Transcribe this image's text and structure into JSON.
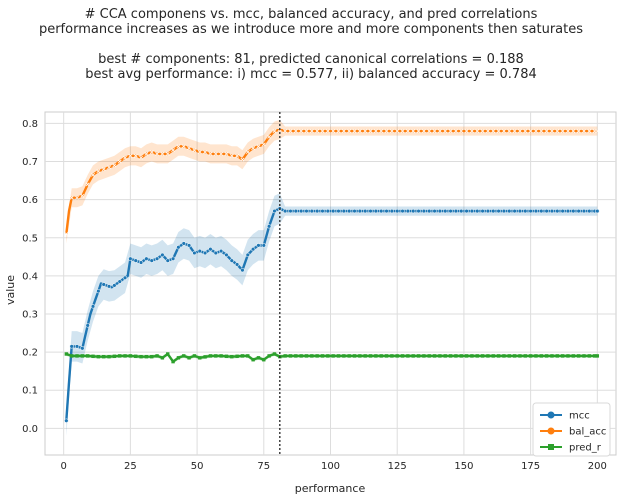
{
  "chart_data": {
    "type": "line",
    "title_lines": [
      "# CCA componens vs. mcc, balanced accuracy, and pred correlations",
      "performance increases as we introduce more and more components then saturates",
      "",
      "best # components: 81,  predicted canonical correlations = 0.188",
      "best avg performance:  i) mcc = 0.577,  ii) balanced accuracy = 0.784"
    ],
    "xlabel": "performance",
    "ylabel": "value",
    "xlim": [
      -7,
      207
    ],
    "ylim": [
      -0.07,
      0.83
    ],
    "xticks": [
      0,
      25,
      50,
      75,
      100,
      125,
      150,
      175,
      200
    ],
    "yticks": [
      0.0,
      0.1,
      0.2,
      0.3,
      0.4,
      0.5,
      0.6,
      0.7,
      0.8
    ],
    "grid": true,
    "legend_position": "lower-right",
    "vline_x": 81,
    "series": [
      {
        "name": "mcc",
        "color": "#1f77b4",
        "marker": "circle",
        "band_width": 0.04,
        "points": [
          [
            1,
            0.02
          ],
          [
            2,
            0.12
          ],
          [
            3,
            0.215
          ],
          [
            5,
            0.215
          ],
          [
            7,
            0.21
          ],
          [
            8,
            0.24
          ],
          [
            9,
            0.27
          ],
          [
            10,
            0.3
          ],
          [
            11,
            0.32
          ],
          [
            12,
            0.34
          ],
          [
            13,
            0.36
          ],
          [
            14,
            0.38
          ],
          [
            16,
            0.375
          ],
          [
            18,
            0.37
          ],
          [
            20,
            0.38
          ],
          [
            22,
            0.39
          ],
          [
            24,
            0.4
          ],
          [
            25,
            0.445
          ],
          [
            27,
            0.44
          ],
          [
            29,
            0.435
          ],
          [
            31,
            0.445
          ],
          [
            33,
            0.44
          ],
          [
            35,
            0.445
          ],
          [
            37,
            0.455
          ],
          [
            39,
            0.44
          ],
          [
            41,
            0.445
          ],
          [
            43,
            0.475
          ],
          [
            45,
            0.485
          ],
          [
            47,
            0.48
          ],
          [
            49,
            0.46
          ],
          [
            51,
            0.465
          ],
          [
            53,
            0.46
          ],
          [
            55,
            0.47
          ],
          [
            57,
            0.46
          ],
          [
            59,
            0.465
          ],
          [
            61,
            0.455
          ],
          [
            63,
            0.44
          ],
          [
            65,
            0.43
          ],
          [
            67,
            0.415
          ],
          [
            69,
            0.455
          ],
          [
            71,
            0.47
          ],
          [
            73,
            0.48
          ],
          [
            75,
            0.48
          ],
          [
            77,
            0.53
          ],
          [
            79,
            0.57
          ],
          [
            81,
            0.577
          ],
          [
            83,
            0.57
          ],
          [
            200,
            0.57
          ]
        ]
      },
      {
        "name": "bal_acc",
        "color": "#ff7f0e",
        "marker": "x",
        "band_width": 0.025,
        "points": [
          [
            1,
            0.51
          ],
          [
            2,
            0.57
          ],
          [
            3,
            0.605
          ],
          [
            5,
            0.605
          ],
          [
            7,
            0.61
          ],
          [
            9,
            0.64
          ],
          [
            11,
            0.665
          ],
          [
            13,
            0.675
          ],
          [
            15,
            0.68
          ],
          [
            17,
            0.685
          ],
          [
            19,
            0.69
          ],
          [
            21,
            0.7
          ],
          [
            23,
            0.71
          ],
          [
            25,
            0.715
          ],
          [
            27,
            0.715
          ],
          [
            29,
            0.71
          ],
          [
            31,
            0.72
          ],
          [
            33,
            0.725
          ],
          [
            35,
            0.72
          ],
          [
            37,
            0.72
          ],
          [
            39,
            0.72
          ],
          [
            41,
            0.73
          ],
          [
            43,
            0.74
          ],
          [
            45,
            0.74
          ],
          [
            47,
            0.735
          ],
          [
            49,
            0.73
          ],
          [
            51,
            0.725
          ],
          [
            53,
            0.725
          ],
          [
            55,
            0.72
          ],
          [
            57,
            0.72
          ],
          [
            59,
            0.72
          ],
          [
            61,
            0.72
          ],
          [
            63,
            0.715
          ],
          [
            65,
            0.715
          ],
          [
            67,
            0.705
          ],
          [
            69,
            0.725
          ],
          [
            71,
            0.735
          ],
          [
            73,
            0.74
          ],
          [
            75,
            0.745
          ],
          [
            77,
            0.765
          ],
          [
            79,
            0.78
          ],
          [
            81,
            0.784
          ],
          [
            83,
            0.78
          ],
          [
            200,
            0.78
          ]
        ]
      },
      {
        "name": "pred_r",
        "color": "#2ca02c",
        "marker": "square",
        "band_width": 0.005,
        "points": [
          [
            1,
            0.195
          ],
          [
            3,
            0.19
          ],
          [
            5,
            0.19
          ],
          [
            9,
            0.19
          ],
          [
            13,
            0.188
          ],
          [
            17,
            0.188
          ],
          [
            21,
            0.19
          ],
          [
            25,
            0.19
          ],
          [
            29,
            0.188
          ],
          [
            33,
            0.188
          ],
          [
            35,
            0.19
          ],
          [
            37,
            0.185
          ],
          [
            39,
            0.195
          ],
          [
            41,
            0.175
          ],
          [
            43,
            0.185
          ],
          [
            45,
            0.19
          ],
          [
            47,
            0.185
          ],
          [
            49,
            0.19
          ],
          [
            51,
            0.185
          ],
          [
            55,
            0.19
          ],
          [
            59,
            0.19
          ],
          [
            63,
            0.188
          ],
          [
            67,
            0.19
          ],
          [
            69,
            0.19
          ],
          [
            71,
            0.18
          ],
          [
            73,
            0.185
          ],
          [
            75,
            0.18
          ],
          [
            77,
            0.19
          ],
          [
            79,
            0.195
          ],
          [
            81,
            0.188
          ],
          [
            83,
            0.19
          ],
          [
            200,
            0.19
          ]
        ]
      }
    ]
  }
}
